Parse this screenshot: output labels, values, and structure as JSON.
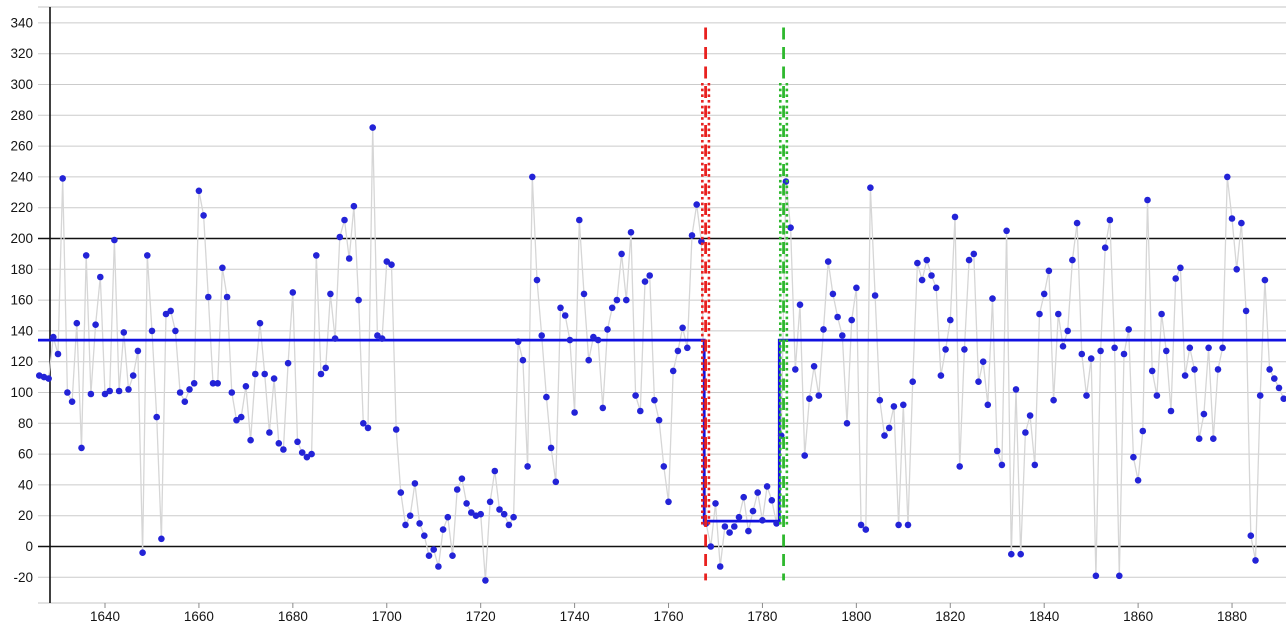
{
  "page": {
    "background": "#ffffff",
    "title": ""
  },
  "chart_data": {
    "type": "scatter",
    "title": "",
    "xlabel": "",
    "ylabel": "",
    "legend": "none",
    "grid": "horizontal-only",
    "x_years": {
      "from": 1626,
      "to": 1891,
      "step": 1
    },
    "values": [
      111,
      110,
      109,
      136,
      125,
      239,
      100,
      94,
      145,
      64,
      189,
      99,
      144,
      175,
      99,
      101,
      199,
      101,
      139,
      102,
      111,
      127,
      -4,
      189,
      140,
      84,
      5,
      151,
      153,
      140,
      100,
      94,
      102,
      106,
      231,
      215,
      162,
      106,
      106,
      181,
      162,
      100,
      82,
      84,
      104,
      69,
      112,
      145,
      112,
      74,
      109,
      67,
      63,
      119,
      165,
      68,
      61,
      58,
      60,
      189,
      112,
      116,
      164,
      135,
      201,
      212,
      187,
      221,
      160,
      80,
      77,
      272,
      137,
      135,
      185,
      183,
      76,
      35,
      14,
      20,
      41,
      15,
      7,
      -6,
      -2,
      -13,
      11,
      19,
      -6,
      37,
      44,
      28,
      22,
      20,
      21,
      -22,
      29,
      49,
      24,
      21,
      14,
      19,
      133,
      121,
      52,
      240,
      173,
      137,
      97,
      64,
      42,
      155,
      150,
      134,
      87,
      212,
      164,
      121,
      136,
      134,
      90,
      141,
      155,
      160,
      190,
      160,
      204,
      98,
      88,
      172,
      176,
      95,
      82,
      52,
      29,
      114,
      127,
      142,
      129,
      202,
      222,
      198,
      15,
      0,
      28,
      -13,
      13,
      9,
      13,
      19,
      32,
      10,
      23,
      35,
      17,
      39,
      30,
      15,
      72,
      237,
      207,
      115,
      157,
      59,
      96,
      117,
      98,
      141,
      185,
      164,
      149,
      137,
      80,
      147,
      168,
      14,
      11,
      233,
      163,
      95,
      72,
      77,
      91,
      14,
      92,
      14,
      107,
      184,
      173,
      186,
      176,
      168,
      111,
      128,
      147,
      214,
      52,
      128,
      186,
      190,
      107,
      120,
      92,
      161,
      62,
      53,
      205,
      -5,
      102,
      -5,
      74,
      85,
      53,
      151,
      164,
      179,
      95,
      151,
      130,
      140,
      186,
      210,
      125,
      98,
      122,
      -19,
      127,
      194,
      212,
      129,
      -19,
      125,
      141,
      58,
      43,
      75,
      225,
      114,
      98,
      151,
      127,
      88,
      174,
      181,
      111,
      129,
      115,
      70,
      86,
      129,
      70,
      115,
      129,
      240,
      213,
      180,
      210,
      153,
      7,
      -9,
      98,
      173,
      115,
      109,
      103,
      96
    ],
    "x_ticks": [
      1640,
      1660,
      1680,
      1700,
      1720,
      1740,
      1760,
      1780,
      1800,
      1820,
      1840,
      1860,
      1880
    ],
    "y_ticks": [
      -20,
      0,
      20,
      40,
      60,
      80,
      100,
      120,
      140,
      160,
      180,
      200,
      220,
      240,
      260,
      280,
      300,
      320,
      340
    ],
    "emphasized_gridlines": [
      0,
      200
    ],
    "ylim": [
      -36,
      350
    ],
    "xlim_years": [
      1625.5,
      1891.5
    ],
    "mean_step_line": {
      "outer_level": 134,
      "inner_level": 16.5,
      "drop_year": 1767.6,
      "rise_year": 1783.6,
      "color": "#1111e0"
    },
    "changepoints": [
      {
        "name": "red-changepoint",
        "color": "#e8211f",
        "dashed_year": 1767.9,
        "dashed_value_span": [
          337,
          -22
        ],
        "dotted_years": [
          1767.2,
          1768.6
        ],
        "dotted_value_span": [
          301,
          13
        ]
      },
      {
        "name": "green-changepoint",
        "color": "#2eb82e",
        "dashed_year": 1784.5,
        "dashed_value_span": [
          337,
          -22
        ],
        "dotted_years": [
          1783.8,
          1785.2
        ],
        "dotted_value_span": [
          301,
          14
        ]
      }
    ],
    "colors": {
      "point": "#2323d7",
      "series_line": "#d6d6d6",
      "gridline": "#cbcbcb",
      "axis": "#111111",
      "tick_label": "#141414",
      "border": "#c6c6c6",
      "tick_mark": "#8a8a8a"
    }
  }
}
